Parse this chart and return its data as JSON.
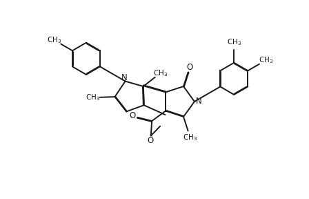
{
  "bg_color": "#ffffff",
  "line_color": "#1a1a1a",
  "line_width": 1.4,
  "dbo": 0.012,
  "figsize": [
    4.48,
    2.88
  ],
  "dpi": 100,
  "font_size": 8.5,
  "fig_xlim": [
    0,
    4.48
  ],
  "fig_ylim": [
    0,
    2.88
  ]
}
